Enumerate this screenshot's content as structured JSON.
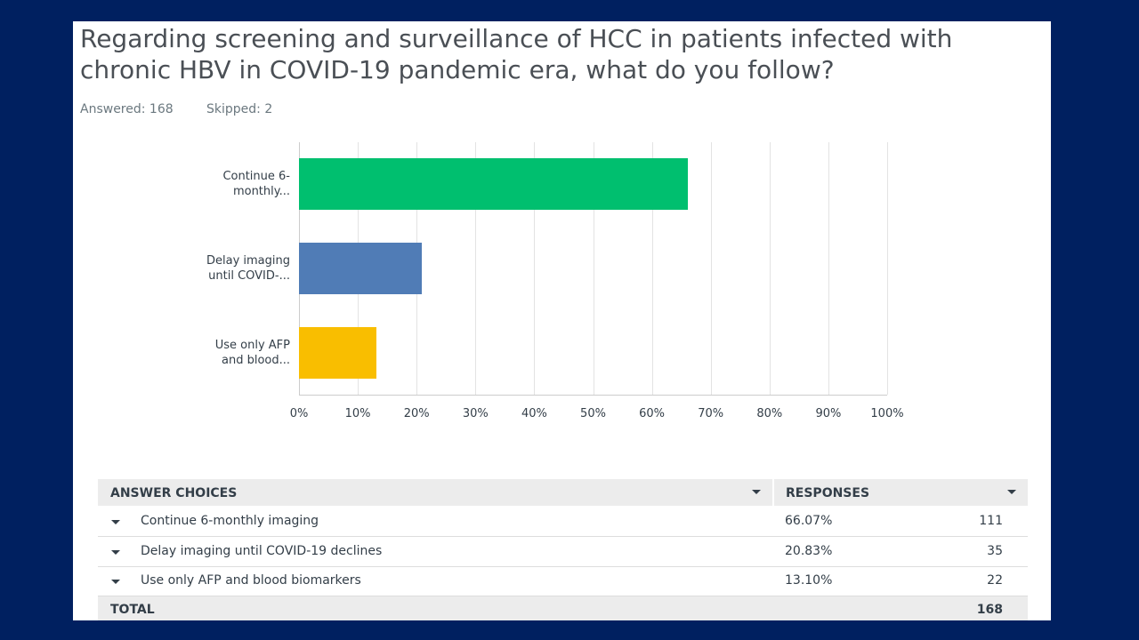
{
  "header": {
    "title": "Regarding screening and surveillance of HCC in patients infected with chronic HBV in COVID-19 pandemic era, what do you follow?",
    "answered": "Answered: 168",
    "skipped": "Skipped: 2"
  },
  "chart_data": {
    "type": "bar",
    "orientation": "horizontal",
    "categories": [
      "Continue 6-monthly...",
      "Delay imaging until COVID-...",
      "Use only AFP and blood..."
    ],
    "values": [
      66.07,
      20.83,
      13.1
    ],
    "colors": [
      "#00bf6f",
      "#507cb6",
      "#f9be00"
    ],
    "xlim": [
      0,
      100
    ],
    "xticks": [
      {
        "value": 0,
        "label": "0%"
      },
      {
        "value": 10,
        "label": "10%"
      },
      {
        "value": 20,
        "label": "20%"
      },
      {
        "value": 30,
        "label": "30%"
      },
      {
        "value": 40,
        "label": "40%"
      },
      {
        "value": 50,
        "label": "50%"
      },
      {
        "value": 60,
        "label": "60%"
      },
      {
        "value": 70,
        "label": "70%"
      },
      {
        "value": 80,
        "label": "80%"
      },
      {
        "value": 90,
        "label": "90%"
      },
      {
        "value": 100,
        "label": "100%"
      }
    ],
    "grid": true
  },
  "table": {
    "columns": [
      "ANSWER CHOICES",
      "RESPONSES"
    ],
    "rows": [
      [
        "Continue 6-monthly imaging",
        "66.07%",
        "111"
      ],
      [
        "Delay imaging until COVID-19 declines",
        "20.83%",
        "35"
      ],
      [
        "Use only AFP and blood biomarkers",
        "13.10%",
        "22"
      ]
    ],
    "total": [
      "TOTAL",
      "168"
    ]
  }
}
